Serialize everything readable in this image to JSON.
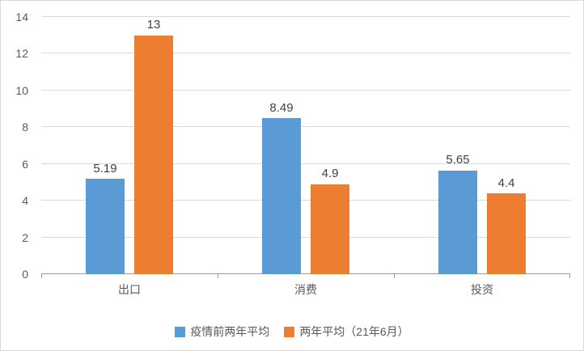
{
  "chart_data": {
    "type": "bar",
    "title": "",
    "xlabel": "",
    "ylabel": "",
    "categories": [
      "出口",
      "消费",
      "投资"
    ],
    "series": [
      {
        "name": "疫情前两年平均",
        "color": "#5b9bd5",
        "values": [
          5.19,
          8.49,
          5.65
        ]
      },
      {
        "name": "两年平均（21年6月）",
        "color": "#ed7d31",
        "values": [
          13,
          4.9,
          4.4
        ]
      }
    ],
    "ylim": [
      0,
      14
    ],
    "ytick_step": 2,
    "grid": true,
    "legend_position": "bottom"
  },
  "colors": {
    "series_blue": "#5b9bd5",
    "series_orange": "#ed7d31",
    "gridline": "#d9d9d9",
    "axis_line": "#9b9b9b",
    "tick_text": "#595959",
    "value_text": "#404040",
    "border": "#d9d9d9"
  }
}
